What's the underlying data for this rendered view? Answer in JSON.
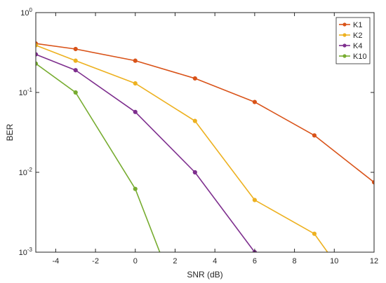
{
  "chart_data": {
    "type": "line",
    "title": "",
    "xlabel": "SNR (dB)",
    "ylabel": "BER",
    "xlim": [
      -5,
      12
    ],
    "ylim": [
      0.001,
      1
    ],
    "yscale": "log",
    "grid": false,
    "legend_position": "top-right",
    "x_ticks": [
      -4,
      -2,
      0,
      2,
      4,
      6,
      8,
      10,
      12
    ],
    "y_ticks": [
      {
        "value": 0.001,
        "base": "10",
        "exp": "-3"
      },
      {
        "value": 0.01,
        "base": "10",
        "exp": "-2"
      },
      {
        "value": 0.1,
        "base": "10",
        "exp": "-1"
      },
      {
        "value": 1,
        "base": "10",
        "exp": "0"
      }
    ],
    "series": [
      {
        "name": "K1",
        "color": "#D95319",
        "points": [
          [
            -5,
            0.41
          ],
          [
            -3,
            0.35
          ],
          [
            0,
            0.25
          ],
          [
            3,
            0.15
          ],
          [
            6,
            0.076
          ],
          [
            9,
            0.029
          ],
          [
            12,
            0.0075
          ]
        ]
      },
      {
        "name": "K2",
        "color": "#EDB120",
        "points": [
          [
            -5,
            0.39
          ],
          [
            -3,
            0.25
          ],
          [
            0,
            0.13
          ],
          [
            3,
            0.044
          ],
          [
            6,
            0.0045
          ],
          [
            9,
            0.0017
          ],
          [
            10.2,
            0.00065
          ]
        ]
      },
      {
        "name": "K4",
        "color": "#7E2F8E",
        "points": [
          [
            -5,
            0.3
          ],
          [
            -3,
            0.19
          ],
          [
            0,
            0.057
          ],
          [
            3,
            0.01
          ],
          [
            6,
            0.001
          ]
        ]
      },
      {
        "name": "K10",
        "color": "#77AC30",
        "points": [
          [
            -5,
            0.23
          ],
          [
            -3,
            0.1
          ],
          [
            0,
            0.0062
          ],
          [
            2,
            0.00032
          ]
        ]
      }
    ]
  }
}
